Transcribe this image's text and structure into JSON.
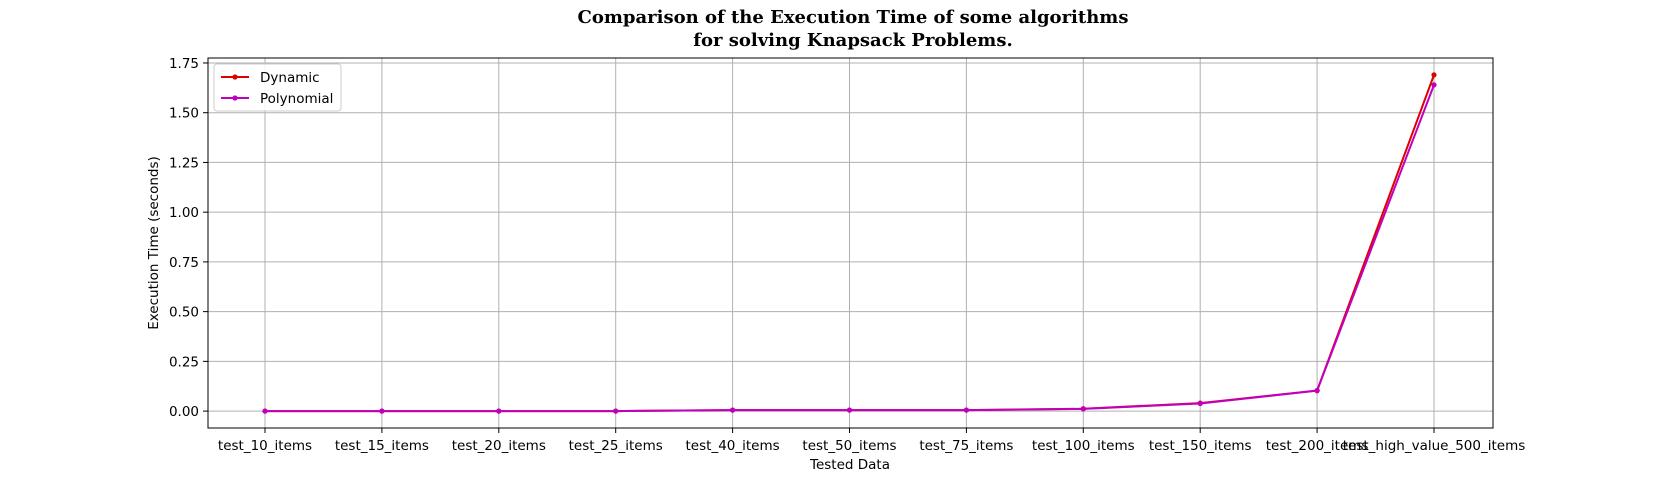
{
  "chart_data": {
    "type": "line",
    "title_line1": "Comparison of the Execution Time of some algorithms",
    "title_line2": "for solving Knapsack Problems.",
    "xlabel": "Tested Data",
    "ylabel": "Execution Time (seconds)",
    "categories": [
      "test_10_items",
      "test_15_items",
      "test_20_items",
      "test_25_items",
      "test_40_items",
      "test_50_items",
      "test_75_items",
      "test_100_items",
      "test_150_items",
      "test_200_items",
      "test_high_value_500_items"
    ],
    "series": [
      {
        "name": "Dynamic",
        "color": "#e00000",
        "values": [
          0.0,
          0.0,
          0.0,
          0.0,
          0.005,
          0.005,
          0.005,
          0.012,
          0.04,
          0.103,
          1.69
        ]
      },
      {
        "name": "Polynomial",
        "color": "#c000c0",
        "values": [
          0.0,
          0.0,
          0.0,
          0.0,
          0.005,
          0.005,
          0.005,
          0.011,
          0.038,
          0.103,
          1.64
        ]
      }
    ],
    "yticks": [
      "0.00",
      "0.25",
      "0.50",
      "0.75",
      "1.00",
      "1.25",
      "1.50",
      "1.75"
    ],
    "ylim": [
      -0.085,
      1.775
    ],
    "grid": true,
    "legend_position": "upper-left"
  }
}
